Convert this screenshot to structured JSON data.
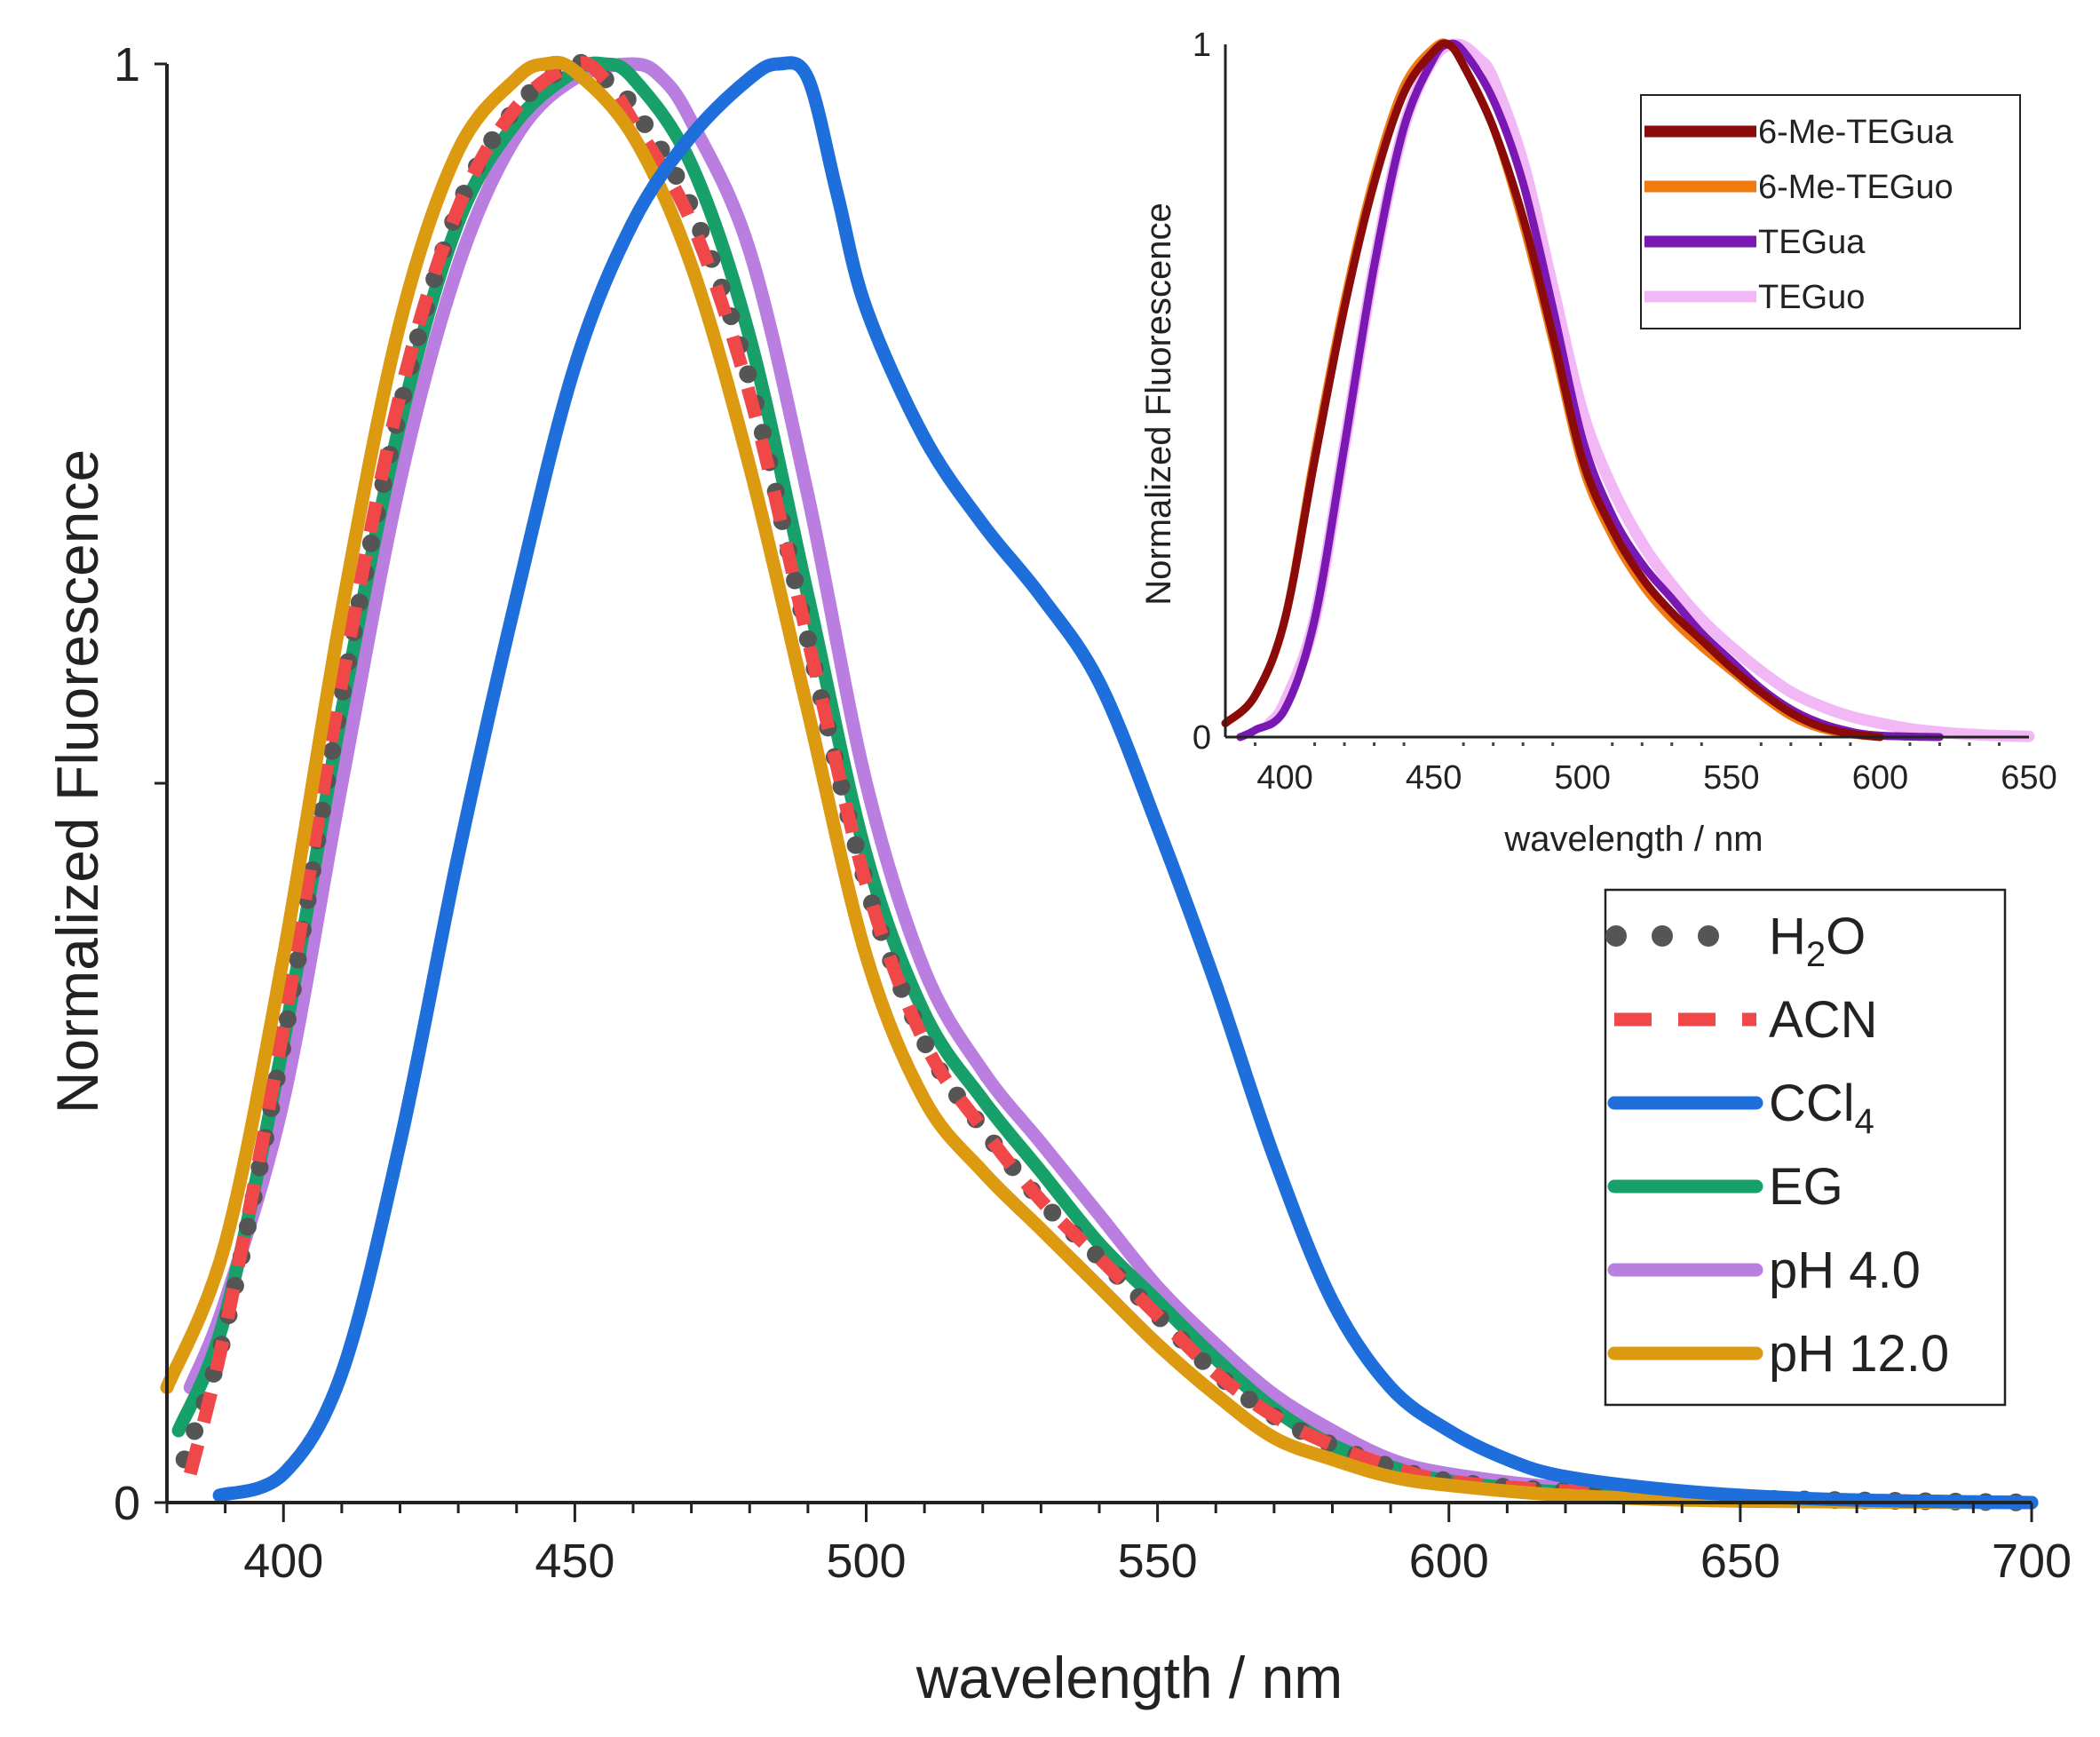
{
  "chart_data": [
    {
      "type": "line",
      "id": "main",
      "title": "",
      "xlabel": "wavelength / nm",
      "ylabel": "Normalized Fluorescence",
      "xlim": [
        380,
        700
      ],
      "ylim": [
        0,
        1
      ],
      "xticks": [
        400,
        450,
        500,
        550,
        600,
        650,
        700
      ],
      "xtick_labels": [
        "400",
        "450",
        "500",
        "550",
        "600",
        "650",
        "700"
      ],
      "yticks": [
        0,
        0.5,
        1
      ],
      "ytick_labels": [
        "0",
        "",
        "1"
      ],
      "legend_position": "lower-right",
      "series": [
        {
          "name": "H2O",
          "legend_main": "H",
          "legend_sub": "2",
          "legend_tail": "O",
          "color": "#555555",
          "style": "dotted",
          "x": [
            383,
            390,
            400,
            410,
            420,
            430,
            440,
            450,
            455,
            460,
            470,
            480,
            490,
            500,
            510,
            520,
            530,
            540,
            550,
            560,
            570,
            580,
            590,
            600,
            620,
            650,
            700
          ],
          "y": [
            0.03,
            0.12,
            0.32,
            0.56,
            0.76,
            0.9,
            0.97,
            1.0,
            0.99,
            0.97,
            0.9,
            0.78,
            0.6,
            0.43,
            0.32,
            0.26,
            0.21,
            0.17,
            0.13,
            0.09,
            0.06,
            0.04,
            0.025,
            0.015,
            0.008,
            0.003,
            0.0
          ]
        },
        {
          "name": "ACN",
          "legend_main": "ACN",
          "legend_sub": "",
          "legend_tail": "",
          "color": "#f04848",
          "style": "dashed",
          "x": [
            384,
            390,
            400,
            410,
            420,
            430,
            440,
            450,
            455,
            460,
            470,
            480,
            490,
            500,
            510,
            520,
            530,
            540,
            550,
            560,
            570,
            580,
            590,
            600,
            620,
            650,
            700
          ],
          "y": [
            0.02,
            0.12,
            0.33,
            0.57,
            0.77,
            0.9,
            0.97,
            1.0,
            0.99,
            0.96,
            0.89,
            0.77,
            0.6,
            0.43,
            0.32,
            0.26,
            0.21,
            0.17,
            0.13,
            0.09,
            0.06,
            0.04,
            0.025,
            0.015,
            0.008,
            0.003,
            0.0
          ]
        },
        {
          "name": "CCl4",
          "legend_main": "CCl",
          "legend_sub": "4",
          "legend_tail": "",
          "color": "#1e6fdc",
          "style": "solid",
          "x": [
            389,
            400,
            410,
            420,
            430,
            440,
            450,
            460,
            470,
            480,
            485,
            490,
            495,
            500,
            510,
            520,
            530,
            540,
            550,
            560,
            570,
            580,
            590,
            600,
            610,
            620,
            640,
            660,
            680,
            700
          ],
          "y": [
            0.005,
            0.02,
            0.09,
            0.25,
            0.45,
            0.63,
            0.79,
            0.89,
            0.95,
            0.99,
            1.0,
            0.99,
            0.91,
            0.83,
            0.74,
            0.68,
            0.63,
            0.57,
            0.47,
            0.36,
            0.24,
            0.14,
            0.08,
            0.05,
            0.03,
            0.018,
            0.008,
            0.003,
            0.001,
            0.0
          ]
        },
        {
          "name": "EG",
          "legend_main": "EG",
          "legend_sub": "",
          "legend_tail": "",
          "color": "#17a06a",
          "style": "solid",
          "x": [
            382,
            390,
            400,
            410,
            420,
            430,
            440,
            450,
            455,
            460,
            470,
            480,
            490,
            500,
            510,
            520,
            530,
            540,
            550,
            560,
            570,
            580,
            590,
            600,
            620,
            650,
            700
          ],
          "y": [
            0.05,
            0.13,
            0.32,
            0.55,
            0.75,
            0.89,
            0.96,
            0.995,
            1.0,
            0.99,
            0.93,
            0.81,
            0.63,
            0.45,
            0.34,
            0.28,
            0.23,
            0.18,
            0.14,
            0.1,
            0.065,
            0.04,
            0.025,
            0.015,
            0.007,
            0.002,
            0.0
          ]
        },
        {
          "name": "pH 4.0",
          "legend_main": "pH 4.0",
          "legend_sub": "",
          "legend_tail": "",
          "color": "#b97ee0",
          "style": "solid",
          "x": [
            384,
            390,
            400,
            410,
            420,
            430,
            440,
            450,
            460,
            465,
            470,
            480,
            490,
            500,
            510,
            520,
            530,
            540,
            550,
            560,
            570,
            580,
            590,
            600,
            620,
            650,
            700
          ],
          "y": [
            0.08,
            0.14,
            0.28,
            0.5,
            0.71,
            0.86,
            0.95,
            0.99,
            1.0,
            0.99,
            0.96,
            0.87,
            0.7,
            0.5,
            0.37,
            0.3,
            0.25,
            0.2,
            0.15,
            0.11,
            0.075,
            0.05,
            0.03,
            0.02,
            0.01,
            0.003,
            0.0
          ]
        },
        {
          "name": "pH 12.0",
          "legend_main": "pH 12.0",
          "legend_sub": "",
          "legend_tail": "",
          "color": "#dc9a10",
          "style": "solid",
          "x": [
            380,
            390,
            400,
            410,
            420,
            430,
            440,
            445,
            450,
            460,
            470,
            480,
            490,
            500,
            510,
            520,
            530,
            540,
            550,
            560,
            570,
            580,
            590,
            600,
            620,
            650,
            700
          ],
          "y": [
            0.08,
            0.18,
            0.38,
            0.62,
            0.82,
            0.94,
            0.99,
            1.0,
            0.995,
            0.95,
            0.86,
            0.72,
            0.55,
            0.38,
            0.28,
            0.23,
            0.19,
            0.15,
            0.11,
            0.075,
            0.045,
            0.03,
            0.018,
            0.012,
            0.005,
            0.001,
            0.0
          ]
        }
      ]
    },
    {
      "type": "line",
      "id": "inset",
      "title": "",
      "xlabel": "wavelength / nm",
      "ylabel": "Normalized Fluorescence",
      "xlim": [
        380,
        650
      ],
      "ylim": [
        0,
        1
      ],
      "xticks": [
        400,
        450,
        500,
        550,
        600,
        650
      ],
      "xtick_labels": [
        "400",
        "450",
        "500",
        "550",
        "600",
        "650"
      ],
      "yticks": [
        0,
        1
      ],
      "ytick_labels": [
        "0",
        "1"
      ],
      "legend_position": "top-right",
      "series": [
        {
          "name": "6-Me-TEGua",
          "color": "#8b0a0a",
          "x": [
            380,
            390,
            400,
            410,
            420,
            430,
            440,
            450,
            455,
            460,
            470,
            480,
            490,
            500,
            510,
            520,
            530,
            540,
            550,
            560,
            570,
            580,
            590,
            600
          ],
          "y": [
            0.02,
            0.06,
            0.17,
            0.4,
            0.62,
            0.8,
            0.93,
            0.99,
            1.0,
            0.97,
            0.88,
            0.75,
            0.58,
            0.4,
            0.3,
            0.23,
            0.18,
            0.14,
            0.1,
            0.065,
            0.035,
            0.015,
            0.005,
            0.0
          ]
        },
        {
          "name": "6-Me-TEGuo",
          "color": "#f07a10",
          "x": [
            380,
            390,
            400,
            410,
            420,
            430,
            440,
            450,
            455,
            460,
            470,
            480,
            490,
            500,
            510,
            520,
            530,
            540,
            550,
            560,
            570,
            580,
            590,
            600
          ],
          "y": [
            0.02,
            0.06,
            0.17,
            0.41,
            0.63,
            0.81,
            0.94,
            0.995,
            1.0,
            0.97,
            0.88,
            0.74,
            0.57,
            0.39,
            0.29,
            0.22,
            0.17,
            0.13,
            0.095,
            0.06,
            0.03,
            0.012,
            0.004,
            0.0
          ]
        },
        {
          "name": "TEGua",
          "color": "#7a18b4",
          "x": [
            385,
            390,
            400,
            410,
            420,
            430,
            440,
            450,
            455,
            460,
            470,
            480,
            490,
            500,
            510,
            520,
            530,
            540,
            550,
            560,
            570,
            580,
            590,
            600,
            620
          ],
          "y": [
            0.0,
            0.01,
            0.04,
            0.17,
            0.42,
            0.68,
            0.88,
            0.98,
            1.0,
            0.99,
            0.92,
            0.8,
            0.62,
            0.43,
            0.32,
            0.25,
            0.2,
            0.15,
            0.11,
            0.07,
            0.04,
            0.02,
            0.008,
            0.002,
            0.0
          ]
        },
        {
          "name": "TEGuo",
          "color": "#f2b8f6",
          "x": [
            395,
            400,
            410,
            420,
            430,
            440,
            450,
            458,
            465,
            470,
            480,
            490,
            500,
            510,
            520,
            530,
            540,
            550,
            560,
            570,
            580,
            590,
            600,
            610,
            620,
            630,
            640,
            650
          ],
          "y": [
            0.02,
            0.05,
            0.17,
            0.42,
            0.68,
            0.88,
            0.98,
            1.0,
            0.98,
            0.95,
            0.83,
            0.65,
            0.47,
            0.36,
            0.28,
            0.22,
            0.17,
            0.13,
            0.095,
            0.065,
            0.045,
            0.03,
            0.02,
            0.012,
            0.007,
            0.004,
            0.002,
            0.001
          ]
        }
      ]
    }
  ]
}
